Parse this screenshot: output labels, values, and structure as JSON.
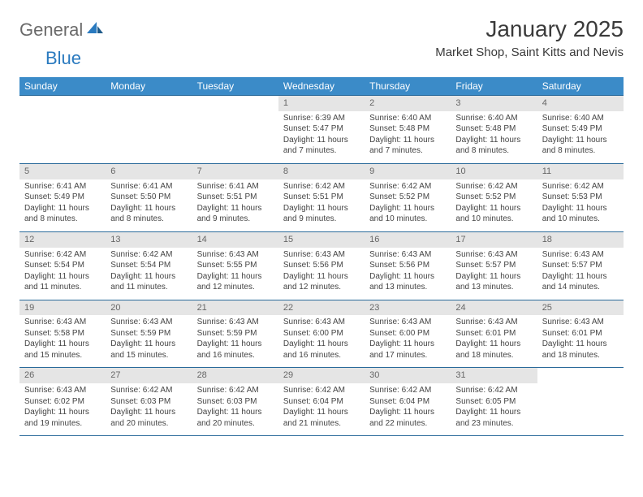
{
  "brand": {
    "general": "General",
    "blue": "Blue"
  },
  "title": "January 2025",
  "location": "Market Shop, Saint Kitts and Nevis",
  "colors": {
    "header_bg": "#3b8bc8",
    "header_fg": "#ffffff",
    "daynum_bg": "#e5e5e5",
    "rule": "#2a6a9a",
    "logo_gray": "#6a6a6a",
    "logo_blue": "#2a7abf"
  },
  "weekdays": [
    "Sunday",
    "Monday",
    "Tuesday",
    "Wednesday",
    "Thursday",
    "Friday",
    "Saturday"
  ],
  "weeks": [
    [
      null,
      null,
      null,
      {
        "n": "1",
        "sr": "6:39 AM",
        "ss": "5:47 PM",
        "dl": "11 hours",
        "dm": "and 7 minutes."
      },
      {
        "n": "2",
        "sr": "6:40 AM",
        "ss": "5:48 PM",
        "dl": "11 hours",
        "dm": "and 7 minutes."
      },
      {
        "n": "3",
        "sr": "6:40 AM",
        "ss": "5:48 PM",
        "dl": "11 hours",
        "dm": "and 8 minutes."
      },
      {
        "n": "4",
        "sr": "6:40 AM",
        "ss": "5:49 PM",
        "dl": "11 hours",
        "dm": "and 8 minutes."
      }
    ],
    [
      {
        "n": "5",
        "sr": "6:41 AM",
        "ss": "5:49 PM",
        "dl": "11 hours",
        "dm": "and 8 minutes."
      },
      {
        "n": "6",
        "sr": "6:41 AM",
        "ss": "5:50 PM",
        "dl": "11 hours",
        "dm": "and 8 minutes."
      },
      {
        "n": "7",
        "sr": "6:41 AM",
        "ss": "5:51 PM",
        "dl": "11 hours",
        "dm": "and 9 minutes."
      },
      {
        "n": "8",
        "sr": "6:42 AM",
        "ss": "5:51 PM",
        "dl": "11 hours",
        "dm": "and 9 minutes."
      },
      {
        "n": "9",
        "sr": "6:42 AM",
        "ss": "5:52 PM",
        "dl": "11 hours",
        "dm": "and 10 minutes."
      },
      {
        "n": "10",
        "sr": "6:42 AM",
        "ss": "5:52 PM",
        "dl": "11 hours",
        "dm": "and 10 minutes."
      },
      {
        "n": "11",
        "sr": "6:42 AM",
        "ss": "5:53 PM",
        "dl": "11 hours",
        "dm": "and 10 minutes."
      }
    ],
    [
      {
        "n": "12",
        "sr": "6:42 AM",
        "ss": "5:54 PM",
        "dl": "11 hours",
        "dm": "and 11 minutes."
      },
      {
        "n": "13",
        "sr": "6:42 AM",
        "ss": "5:54 PM",
        "dl": "11 hours",
        "dm": "and 11 minutes."
      },
      {
        "n": "14",
        "sr": "6:43 AM",
        "ss": "5:55 PM",
        "dl": "11 hours",
        "dm": "and 12 minutes."
      },
      {
        "n": "15",
        "sr": "6:43 AM",
        "ss": "5:56 PM",
        "dl": "11 hours",
        "dm": "and 12 minutes."
      },
      {
        "n": "16",
        "sr": "6:43 AM",
        "ss": "5:56 PM",
        "dl": "11 hours",
        "dm": "and 13 minutes."
      },
      {
        "n": "17",
        "sr": "6:43 AM",
        "ss": "5:57 PM",
        "dl": "11 hours",
        "dm": "and 13 minutes."
      },
      {
        "n": "18",
        "sr": "6:43 AM",
        "ss": "5:57 PM",
        "dl": "11 hours",
        "dm": "and 14 minutes."
      }
    ],
    [
      {
        "n": "19",
        "sr": "6:43 AM",
        "ss": "5:58 PM",
        "dl": "11 hours",
        "dm": "and 15 minutes."
      },
      {
        "n": "20",
        "sr": "6:43 AM",
        "ss": "5:59 PM",
        "dl": "11 hours",
        "dm": "and 15 minutes."
      },
      {
        "n": "21",
        "sr": "6:43 AM",
        "ss": "5:59 PM",
        "dl": "11 hours",
        "dm": "and 16 minutes."
      },
      {
        "n": "22",
        "sr": "6:43 AM",
        "ss": "6:00 PM",
        "dl": "11 hours",
        "dm": "and 16 minutes."
      },
      {
        "n": "23",
        "sr": "6:43 AM",
        "ss": "6:00 PM",
        "dl": "11 hours",
        "dm": "and 17 minutes."
      },
      {
        "n": "24",
        "sr": "6:43 AM",
        "ss": "6:01 PM",
        "dl": "11 hours",
        "dm": "and 18 minutes."
      },
      {
        "n": "25",
        "sr": "6:43 AM",
        "ss": "6:01 PM",
        "dl": "11 hours",
        "dm": "and 18 minutes."
      }
    ],
    [
      {
        "n": "26",
        "sr": "6:43 AM",
        "ss": "6:02 PM",
        "dl": "11 hours",
        "dm": "and 19 minutes."
      },
      {
        "n": "27",
        "sr": "6:42 AM",
        "ss": "6:03 PM",
        "dl": "11 hours",
        "dm": "and 20 minutes."
      },
      {
        "n": "28",
        "sr": "6:42 AM",
        "ss": "6:03 PM",
        "dl": "11 hours",
        "dm": "and 20 minutes."
      },
      {
        "n": "29",
        "sr": "6:42 AM",
        "ss": "6:04 PM",
        "dl": "11 hours",
        "dm": "and 21 minutes."
      },
      {
        "n": "30",
        "sr": "6:42 AM",
        "ss": "6:04 PM",
        "dl": "11 hours",
        "dm": "and 22 minutes."
      },
      {
        "n": "31",
        "sr": "6:42 AM",
        "ss": "6:05 PM",
        "dl": "11 hours",
        "dm": "and 23 minutes."
      },
      null
    ]
  ],
  "labels": {
    "sunrise": "Sunrise: ",
    "sunset": "Sunset: ",
    "daylight": "Daylight: "
  }
}
